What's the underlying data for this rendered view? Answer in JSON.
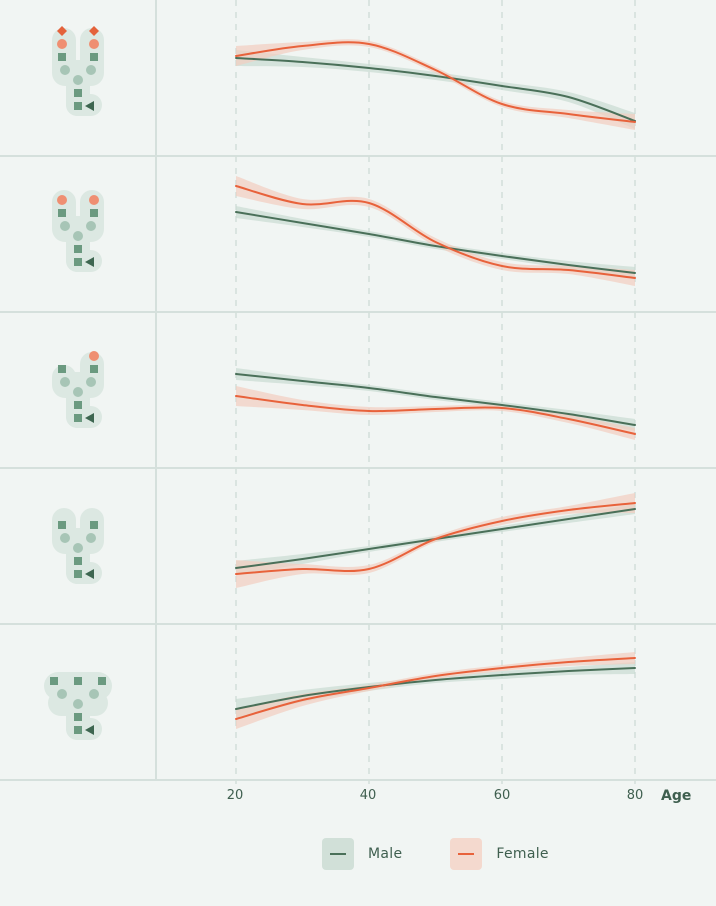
{
  "colors": {
    "background": "#f1f5f3",
    "grid": "#d5e0dc",
    "male": "#4a7059",
    "male_band": "#c9dbd2",
    "female": "#e8623b",
    "female_band": "#f2cdbf",
    "icon_body": "#dce8e2",
    "icon_square": "#6b9a80",
    "icon_circle": "#a7c5b6",
    "icon_orange": "#ef8f72",
    "icon_diamond": "#e4623b",
    "icon_arrow": "#3d6650"
  },
  "axis": {
    "title": "Age",
    "ticks": [
      "20",
      "40",
      "60",
      "80"
    ]
  },
  "legend": {
    "items": [
      {
        "label": "Male",
        "key": "male"
      },
      {
        "label": "Female",
        "key": "female"
      }
    ]
  },
  "chart_data": {
    "type": "line",
    "title": "",
    "xlabel": "Age",
    "ylabel": "",
    "x": [
      20,
      30,
      40,
      50,
      60,
      70,
      80
    ],
    "xlim": [
      20,
      80
    ],
    "grid": "vertical dashed at ticks",
    "legend_position": "bottom",
    "note": "Five stacked small-multiple panels (rows), each labeled by a glycan-like icon; y values are relative pixel heights within each panel (0 = top of panel, 156 = bottom). Shaded bands are confidence intervals.",
    "panels": [
      {
        "icon": "biantennary-with-fucose-diamond",
        "series": [
          {
            "name": "Male",
            "values": [
              58,
              62,
              68,
              76,
              86,
              97,
              121
            ],
            "band": [
              8,
              5,
              4,
              4,
              4,
              5,
              8
            ]
          },
          {
            "name": "Female",
            "values": [
              56,
              46,
              44,
              70,
              104,
              114,
              122
            ],
            "band": [
              10,
              4,
              3,
              3,
              3,
              4,
              8
            ]
          }
        ]
      },
      {
        "icon": "biantennary-orange-circles",
        "series": [
          {
            "name": "Male",
            "values": [
              56,
              67,
              78,
              90,
              100,
              109,
              117
            ],
            "band": [
              6,
              4,
              3,
              3,
              3,
              4,
              6
            ]
          },
          {
            "name": "Female",
            "values": [
              30,
              48,
              47,
              86,
              110,
              114,
              122
            ],
            "band": [
              10,
              5,
              4,
              4,
              4,
              4,
              8
            ]
          }
        ]
      },
      {
        "icon": "biantennary-one-orange-circle",
        "series": [
          {
            "name": "Male",
            "values": [
              62,
              69,
              76,
              85,
              93,
              102,
              113
            ],
            "band": [
              6,
              4,
              3,
              3,
              3,
              4,
              6
            ]
          },
          {
            "name": "Female",
            "values": [
              84,
              93,
              99,
              97,
              96,
              107,
              122
            ],
            "band": [
              10,
              5,
              4,
              3,
              3,
              4,
              6
            ]
          }
        ]
      },
      {
        "icon": "biantennary-plain",
        "series": [
          {
            "name": "Male",
            "values": [
              100,
              91,
              81,
              71,
              61,
              51,
              41
            ],
            "band": [
              7,
              5,
              3,
              3,
              3,
              4,
              5
            ]
          },
          {
            "name": "Female",
            "values": [
              106,
              101,
              101,
              71,
              53,
              42,
              35
            ],
            "band": [
              14,
              5,
              4,
              3,
              4,
              4,
              10
            ]
          }
        ]
      },
      {
        "icon": "triantennary-plain",
        "series": [
          {
            "name": "Male",
            "values": [
              85,
              72,
              63,
              56,
              51,
              47,
              44
            ],
            "band": [
              10,
              6,
              4,
              3,
              4,
              4,
              6
            ]
          },
          {
            "name": "Female",
            "values": [
              95,
              76,
              64,
              52,
              44,
              38,
              34
            ],
            "band": [
              10,
              6,
              3,
              3,
              3,
              4,
              6
            ]
          }
        ]
      }
    ]
  }
}
